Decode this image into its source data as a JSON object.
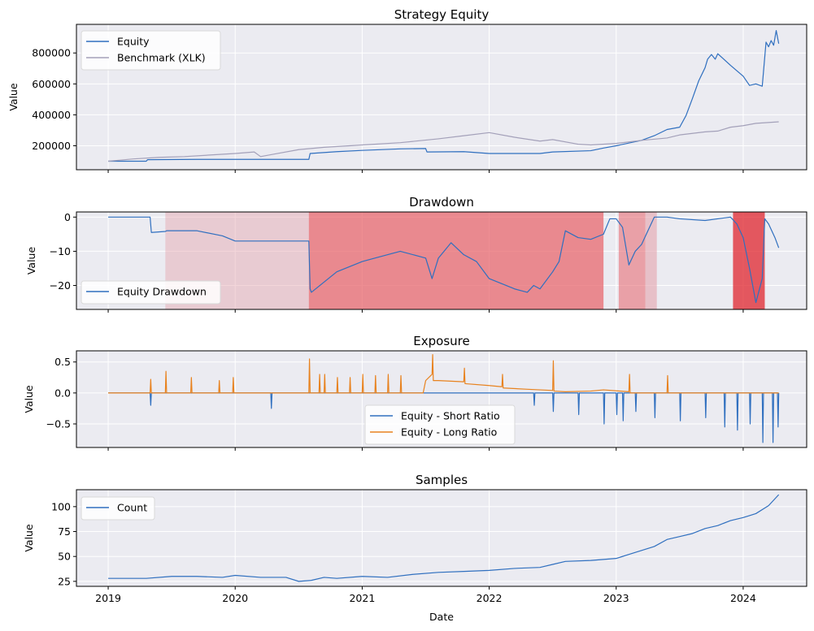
{
  "chart_data": [
    {
      "type": "line",
      "title": "Strategy Equity",
      "ylabel": "Value",
      "xlim": [
        2018.75,
        2024.5
      ],
      "ylim": [
        45000,
        985000
      ],
      "yticks": [
        200000,
        400000,
        600000,
        800000
      ],
      "ytick_labels": [
        "200000",
        "400000",
        "600000",
        "800000"
      ],
      "legend": "upper-left",
      "series": [
        {
          "name": "Equity",
          "color": "#2f6fbf",
          "x": [
            2019.0,
            2019.3,
            2019.31,
            2019.7,
            2020.0,
            2020.58,
            2020.59,
            2020.8,
            2021.0,
            2021.3,
            2021.5,
            2021.51,
            2021.8,
            2022.0,
            2022.4,
            2022.5,
            2022.8,
            2022.9,
            2023.0,
            2023.2,
            2023.3,
            2023.4,
            2023.5,
            2023.55,
            2023.6,
            2023.65,
            2023.7,
            2023.72,
            2023.75,
            2023.78,
            2023.8,
            2023.9,
            2024.0,
            2024.05,
            2024.1,
            2024.15,
            2024.18,
            2024.2,
            2024.22,
            2024.24,
            2024.26,
            2024.28
          ],
          "y": [
            100000,
            100000,
            110000,
            112000,
            112000,
            112000,
            150000,
            162000,
            170000,
            180000,
            182000,
            160000,
            162000,
            150000,
            150000,
            160000,
            168000,
            185000,
            200000,
            235000,
            265000,
            305000,
            320000,
            395000,
            505000,
            620000,
            705000,
            760000,
            790000,
            760000,
            795000,
            720000,
            650000,
            590000,
            600000,
            585000,
            870000,
            840000,
            880000,
            850000,
            945000,
            860000
          ]
        },
        {
          "name": "Benchmark (XLK)",
          "color": "#a3a0b9",
          "x": [
            2019.0,
            2019.2,
            2019.4,
            2019.6,
            2019.8,
            2020.0,
            2020.15,
            2020.2,
            2020.3,
            2020.5,
            2020.7,
            2020.9,
            2021.0,
            2021.3,
            2021.6,
            2021.8,
            2022.0,
            2022.2,
            2022.4,
            2022.5,
            2022.7,
            2022.8,
            2023.0,
            2023.2,
            2023.4,
            2023.5,
            2023.7,
            2023.8,
            2023.9,
            2024.0,
            2024.1,
            2024.28
          ],
          "y": [
            100000,
            115000,
            125000,
            130000,
            140000,
            150000,
            160000,
            130000,
            145000,
            175000,
            190000,
            200000,
            205000,
            220000,
            245000,
            265000,
            285000,
            255000,
            230000,
            240000,
            210000,
            205000,
            215000,
            235000,
            250000,
            270000,
            290000,
            295000,
            320000,
            330000,
            345000,
            355000
          ]
        }
      ]
    },
    {
      "type": "line",
      "title": "Drawdown",
      "ylabel": "Value",
      "xlim": [
        2018.75,
        2024.5
      ],
      "ylim": [
        -27,
        1.5
      ],
      "yticks": [
        0,
        -10,
        -20
      ],
      "ytick_labels": [
        "0",
        "−10",
        "−20"
      ],
      "legend": "lower-left",
      "shaded_regions": [
        {
          "x": [
            2019.45,
            2020.58
          ],
          "color": "#e4a3ad",
          "opacity": 0.45
        },
        {
          "x": [
            2020.58,
            2022.9
          ],
          "color": "#e8626a",
          "opacity": 0.72
        },
        {
          "x": [
            2023.02,
            2023.23
          ],
          "color": "#e8626a",
          "opacity": 0.55
        },
        {
          "x": [
            2023.23,
            2023.32
          ],
          "color": "#e4a3ad",
          "opacity": 0.6
        },
        {
          "x": [
            2023.92,
            2024.17
          ],
          "color": "#e0262d",
          "opacity": 0.75
        }
      ],
      "series": [
        {
          "name": "Equity Drawdown",
          "color": "#2f6fbf",
          "x": [
            2019.0,
            2019.33,
            2019.34,
            2019.45,
            2019.46,
            2019.7,
            2019.9,
            2020.0,
            2020.3,
            2020.58,
            2020.59,
            2020.6,
            2020.8,
            2021.0,
            2021.1,
            2021.3,
            2021.5,
            2021.55,
            2021.6,
            2021.7,
            2021.8,
            2021.9,
            2022.0,
            2022.2,
            2022.3,
            2022.35,
            2022.4,
            2022.5,
            2022.55,
            2022.6,
            2022.7,
            2022.8,
            2022.9,
            2022.95,
            2023.0,
            2023.05,
            2023.1,
            2023.15,
            2023.2,
            2023.25,
            2023.3,
            2023.4,
            2023.5,
            2023.7,
            2023.9,
            2023.95,
            2024.0,
            2024.05,
            2024.1,
            2024.15,
            2024.17,
            2024.2,
            2024.25,
            2024.28
          ],
          "y": [
            0,
            0,
            -4.5,
            -4.2,
            -4,
            -4,
            -5.5,
            -7,
            -7,
            -7,
            -21,
            -22,
            -16,
            -13,
            -12,
            -10,
            -12,
            -18,
            -12,
            -7.5,
            -11,
            -13,
            -18,
            -21,
            -22,
            -20,
            -21,
            -16,
            -13,
            -4,
            -6,
            -6.5,
            -5,
            -0.5,
            -0.5,
            -3,
            -14,
            -10,
            -8,
            -4,
            0,
            0,
            -0.5,
            -1,
            0,
            -2,
            -6,
            -15,
            -25,
            -18,
            -0.5,
            -2,
            -6,
            -9
          ]
        }
      ]
    },
    {
      "type": "line",
      "title": "Exposure",
      "ylabel": "Value",
      "xlim": [
        2018.75,
        2024.5
      ],
      "ylim": [
        -0.88,
        0.68
      ],
      "yticks": [
        0.5,
        0.0,
        -0.5
      ],
      "ytick_labels": [
        "0.5",
        "0.0",
        "−0.5"
      ],
      "legend": "lower-center",
      "series": [
        {
          "name": "Equity - Short Ratio",
          "color": "#2f6fbf",
          "x": [
            2019.0,
            2019.33,
            2019.335,
            2019.34,
            2020.28,
            2020.285,
            2020.29,
            2022.35,
            2022.355,
            2022.36,
            2022.5,
            2022.505,
            2022.51,
            2022.7,
            2022.705,
            2022.71,
            2022.9,
            2022.905,
            2022.91,
            2023.0,
            2023.005,
            2023.01,
            2023.05,
            2023.055,
            2023.06,
            2023.15,
            2023.155,
            2023.16,
            2023.3,
            2023.305,
            2023.31,
            2023.5,
            2023.505,
            2023.51,
            2023.7,
            2023.705,
            2023.71,
            2023.85,
            2023.855,
            2023.86,
            2023.95,
            2023.955,
            2023.96,
            2024.05,
            2024.055,
            2024.06,
            2024.15,
            2024.155,
            2024.16,
            2024.23,
            2024.235,
            2024.24,
            2024.27,
            2024.275,
            2024.28
          ],
          "y": [
            0,
            0,
            -0.2,
            0,
            0,
            -0.25,
            0,
            0,
            -0.2,
            0,
            0,
            -0.3,
            0,
            0,
            -0.35,
            0,
            0,
            -0.5,
            0,
            0,
            -0.35,
            0,
            0,
            -0.45,
            0,
            0,
            -0.3,
            0,
            0,
            -0.4,
            0,
            0,
            -0.45,
            0,
            0,
            -0.4,
            0,
            0,
            -0.55,
            0,
            0,
            -0.6,
            0,
            0,
            -0.5,
            0,
            0,
            -0.8,
            0,
            0,
            -0.8,
            0,
            0,
            -0.55,
            0
          ]
        },
        {
          "name": "Equity - Long Ratio",
          "color": "#e8821e",
          "x": [
            2019.0,
            2019.33,
            2019.335,
            2019.34,
            2019.45,
            2019.455,
            2019.46,
            2019.65,
            2019.655,
            2019.66,
            2019.87,
            2019.875,
            2019.88,
            2019.98,
            2019.985,
            2019.99,
            2020.58,
            2020.585,
            2020.59,
            2020.66,
            2020.665,
            2020.67,
            2020.7,
            2020.705,
            2020.71,
            2020.8,
            2020.805,
            2020.81,
            2020.9,
            2020.905,
            2020.91,
            2021.0,
            2021.005,
            2021.01,
            2021.1,
            2021.105,
            2021.11,
            2021.2,
            2021.205,
            2021.21,
            2021.3,
            2021.305,
            2021.31,
            2021.48,
            2021.5,
            2021.55,
            2021.555,
            2021.56,
            2021.6,
            2021.8,
            2021.805,
            2021.81,
            2022.0,
            2022.1,
            2022.105,
            2022.11,
            2022.3,
            2022.5,
            2022.505,
            2022.51,
            2022.6,
            2022.8,
            2022.9,
            2023.1,
            2023.105,
            2023.11,
            2023.4,
            2023.405,
            2023.41,
            2024.28
          ],
          "y": [
            0,
            0,
            0.22,
            0,
            0,
            0.35,
            0,
            0,
            0.25,
            0,
            0,
            0.2,
            0,
            0,
            0.25,
            0,
            0,
            0.55,
            0,
            0,
            0.3,
            0,
            0,
            0.3,
            0,
            0,
            0.25,
            0,
            0,
            0.25,
            0,
            0,
            0.3,
            0,
            0,
            0.28,
            0,
            0,
            0.3,
            0,
            0,
            0.28,
            0,
            0,
            0.2,
            0.3,
            0.62,
            0.2,
            0.2,
            0.18,
            0.4,
            0.15,
            0.12,
            0.1,
            0.3,
            0.08,
            0.06,
            0.04,
            0.52,
            0.03,
            0.02,
            0.03,
            0.05,
            0.02,
            0.3,
            0,
            0,
            0.28,
            0,
            0
          ]
        }
      ]
    },
    {
      "type": "line",
      "title": "Samples",
      "xlabel": "Date",
      "ylabel": "Value",
      "xlim": [
        2018.75,
        2024.5
      ],
      "ylim": [
        20,
        117
      ],
      "yticks": [
        25,
        50,
        75,
        100
      ],
      "ytick_labels": [
        "25",
        "50",
        "75",
        "100"
      ],
      "xticks": [
        2019,
        2020,
        2021,
        2022,
        2023,
        2024
      ],
      "xtick_labels": [
        "2019",
        "2020",
        "2021",
        "2022",
        "2023",
        "2024"
      ],
      "legend": "upper-left",
      "series": [
        {
          "name": "Count",
          "color": "#2f6fbf",
          "x": [
            2019.0,
            2019.3,
            2019.5,
            2019.7,
            2019.9,
            2020.0,
            2020.2,
            2020.4,
            2020.5,
            2020.6,
            2020.7,
            2020.8,
            2021.0,
            2021.2,
            2021.4,
            2021.6,
            2021.8,
            2022.0,
            2022.2,
            2022.4,
            2022.5,
            2022.6,
            2022.8,
            2022.9,
            2023.0,
            2023.1,
            2023.2,
            2023.3,
            2023.4,
            2023.5,
            2023.6,
            2023.7,
            2023.8,
            2023.9,
            2024.0,
            2024.1,
            2024.2,
            2024.28
          ],
          "y": [
            28,
            28,
            30,
            30,
            29,
            31,
            29,
            29,
            25,
            26,
            29,
            28,
            30,
            29,
            32,
            34,
            35,
            36,
            38,
            39,
            42,
            45,
            46,
            47,
            48,
            52,
            56,
            60,
            67,
            70,
            73,
            78,
            81,
            86,
            89,
            93,
            101,
            112
          ]
        }
      ]
    }
  ]
}
